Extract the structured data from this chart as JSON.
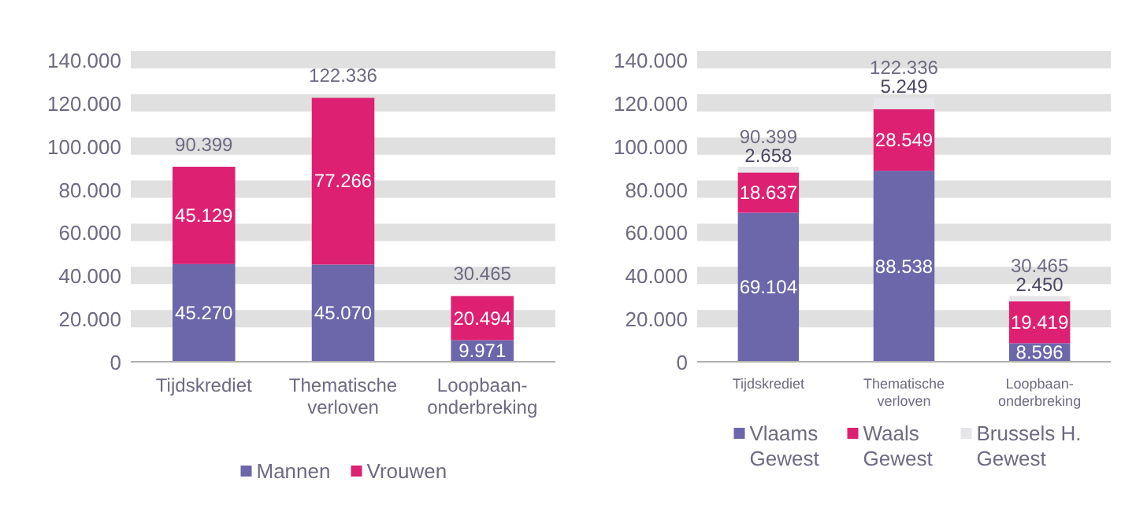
{
  "chart_data": [
    {
      "type": "bar",
      "stacked": true,
      "categories": [
        "Tijdskrediet",
        "Thematische verloven",
        "Loopbaan-onderbreking"
      ],
      "series": [
        {
          "name": "Mannen",
          "color": "#6c66ab",
          "values": [
            45270,
            45070,
            9971
          ],
          "value_labels": [
            "45.270",
            "45.070",
            "9.971"
          ]
        },
        {
          "name": "Vrouwen",
          "color": "#dd2072",
          "values": [
            45129,
            77266,
            20494
          ],
          "value_labels": [
            "45.129",
            "77.266",
            "20.494"
          ]
        }
      ],
      "totals": [
        "90.399",
        "122.336",
        "30.465"
      ],
      "grid": "y",
      "legend": "bottom",
      "ylim": [
        0,
        140000
      ],
      "yticks": [
        {
          "value": 0,
          "label": "0"
        },
        {
          "value": 20000,
          "label": "20.000"
        },
        {
          "value": 40000,
          "label": "40.000"
        },
        {
          "value": 60000,
          "label": "60.000"
        },
        {
          "value": 80000,
          "label": "80.000"
        },
        {
          "value": 100000,
          "label": "100.000"
        },
        {
          "value": 120000,
          "label": "120.000"
        },
        {
          "value": 140000,
          "label": "140.000"
        }
      ]
    },
    {
      "type": "bar",
      "stacked": true,
      "categories": [
        "Tijdskrediet",
        "Thematische verloven",
        "Loopbaan-onderbreking"
      ],
      "series": [
        {
          "name": "Vlaams Gewest",
          "color": "#6c66ab",
          "values": [
            69104,
            88538,
            8596
          ],
          "value_labels": [
            "69.104",
            "88.538",
            "8.596"
          ]
        },
        {
          "name": "Waals Gewest",
          "color": "#dd2072",
          "values": [
            18637,
            28549,
            19419
          ],
          "value_labels": [
            "18.637",
            "28.549",
            "19.419"
          ]
        },
        {
          "name": "Brussels H. Gewest",
          "color": "#e6e6ea",
          "values": [
            2658,
            5249,
            2450
          ],
          "value_labels": [
            "2.658",
            "5.249",
            "2.450"
          ]
        }
      ],
      "totals": [
        "90.399",
        "122.336",
        "30.465"
      ],
      "grid": "y",
      "legend": "bottom",
      "ylim": [
        0,
        140000
      ],
      "yticks": [
        {
          "value": 0,
          "label": "0"
        },
        {
          "value": 20000,
          "label": "20.000"
        },
        {
          "value": 40000,
          "label": "40.000"
        },
        {
          "value": 60000,
          "label": "60.000"
        },
        {
          "value": 80000,
          "label": "80.000"
        },
        {
          "value": 100000,
          "label": "100.000"
        },
        {
          "value": 120000,
          "label": "120.000"
        },
        {
          "value": 140000,
          "label": "140.000"
        }
      ]
    }
  ]
}
